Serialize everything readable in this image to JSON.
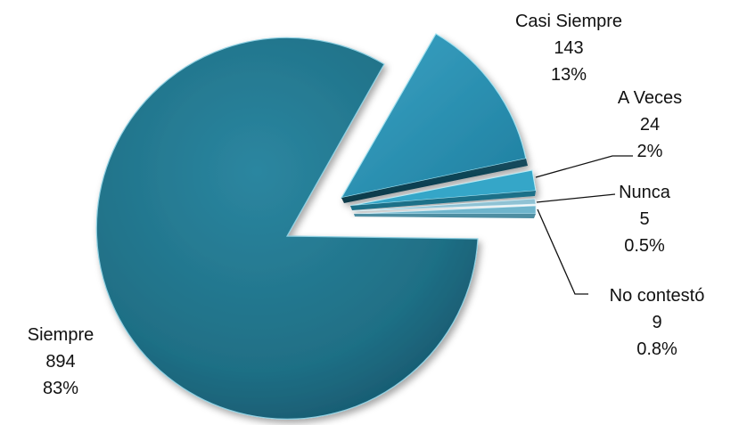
{
  "chart_data": {
    "type": "pie",
    "style": "3d-exploded",
    "slices": [
      {
        "label": "Siempre",
        "value": 894,
        "percent_label": "83%",
        "color": "#1f6f85"
      },
      {
        "label": "Casi Siempre",
        "value": 143,
        "percent_label": "13%",
        "color": "#2a8cac"
      },
      {
        "label": "A Veces",
        "value": 24,
        "percent_label": "2%",
        "color": "#3ea6c6"
      },
      {
        "label": "Nunca",
        "value": 5,
        "percent_label": "0.5%",
        "color": "#8fc2d4"
      },
      {
        "label": "No contestó",
        "value": 9,
        "percent_label": "0.8%",
        "color": "#6fb5cc"
      }
    ],
    "legend": "none"
  }
}
